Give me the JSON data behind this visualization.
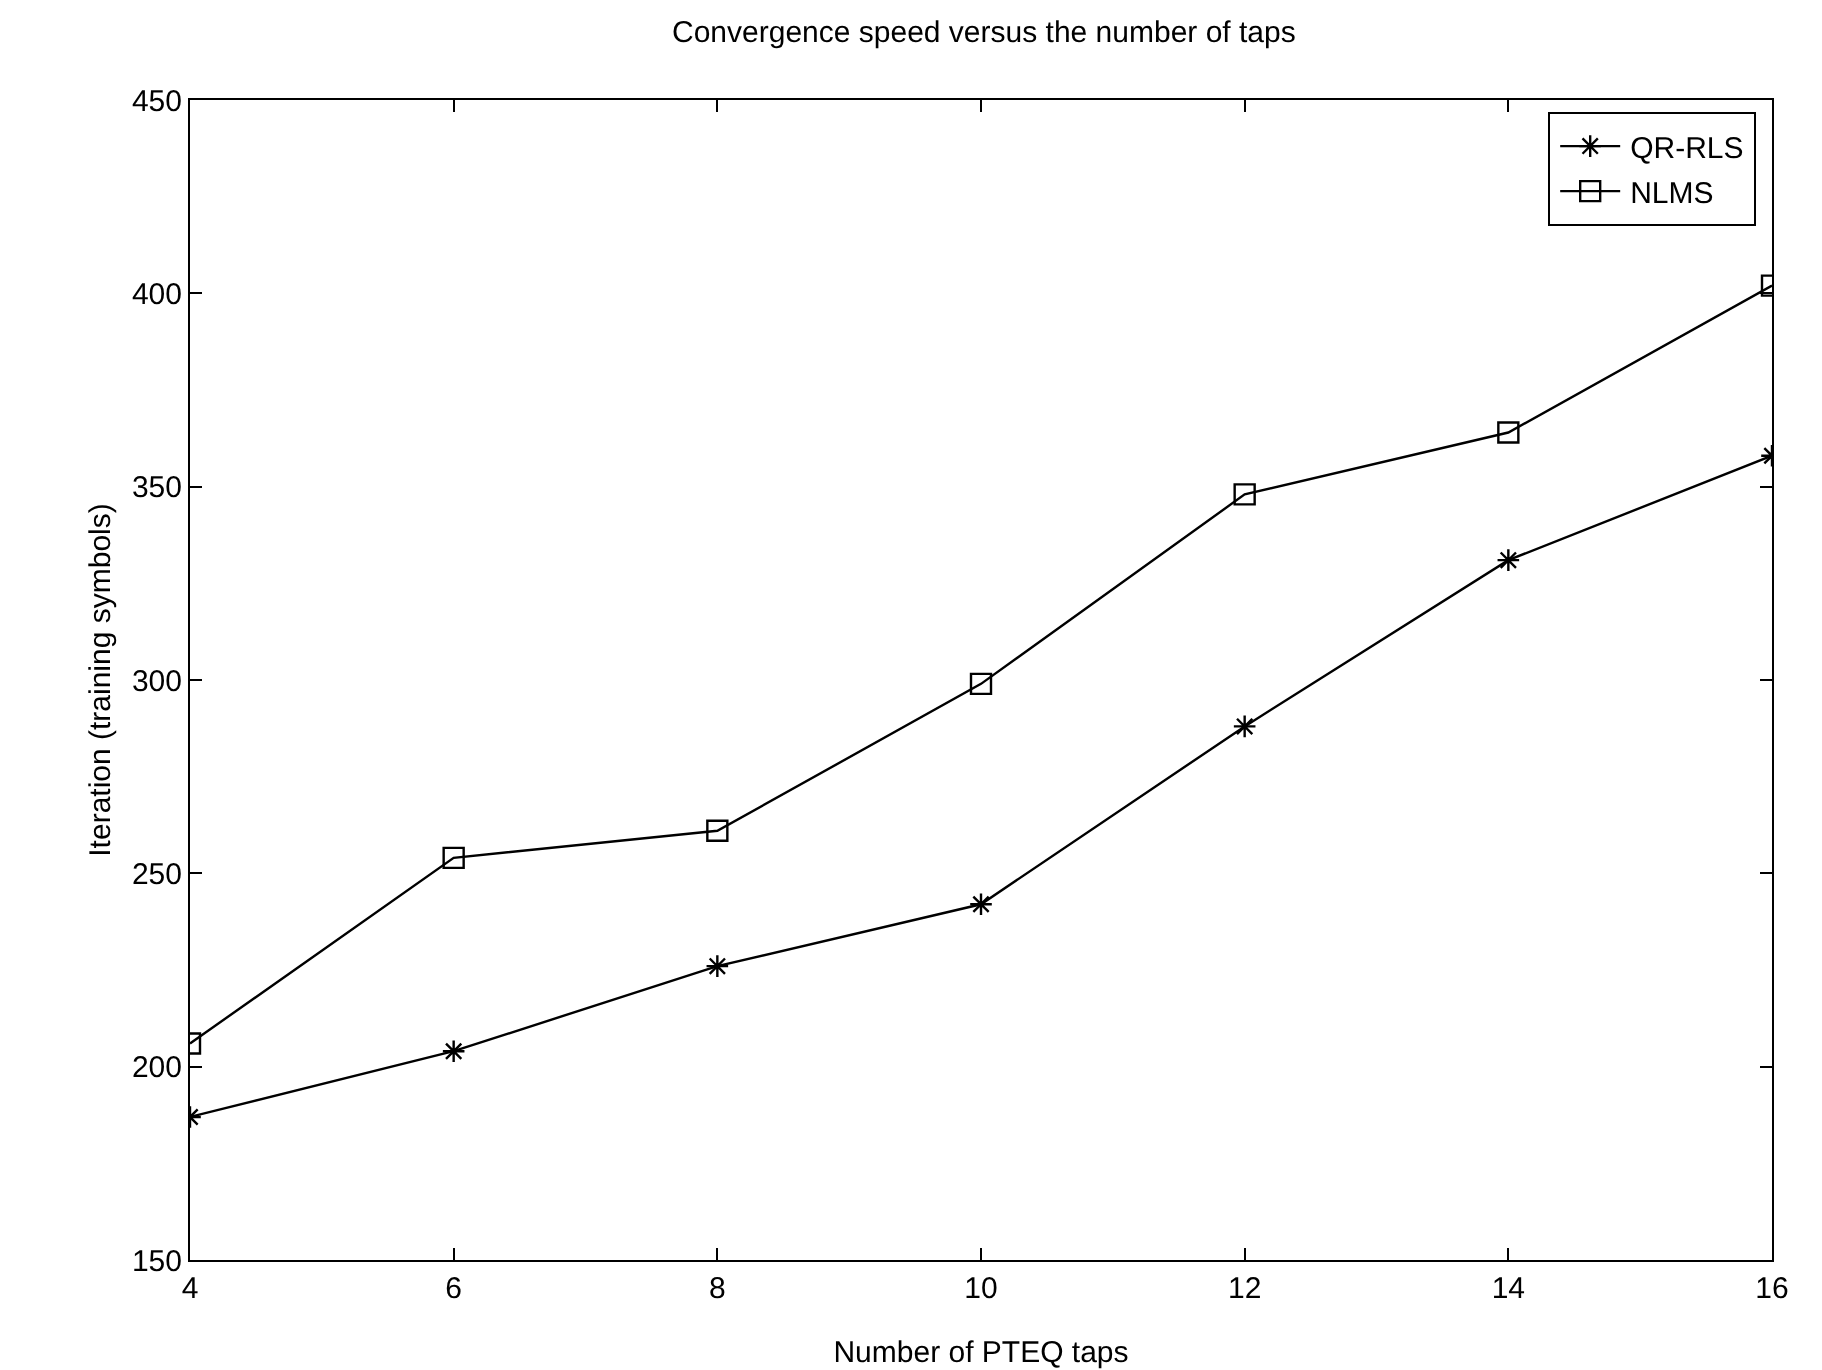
{
  "chart_data": {
    "type": "line",
    "title": "Convergence speed versus the number of taps",
    "xlabel": "Number of PTEQ taps",
    "ylabel": "Iteration (training symbols)",
    "x": [
      4,
      6,
      8,
      10,
      12,
      14,
      16
    ],
    "series": [
      {
        "name": "QR-RLS",
        "color": "#000000",
        "marker": "cross",
        "values": [
          187,
          204,
          226,
          242,
          288,
          331,
          358
        ]
      },
      {
        "name": "NLMS",
        "color": "#000000",
        "marker": "square",
        "values": [
          206,
          254,
          261,
          299,
          348,
          364,
          402
        ]
      }
    ],
    "xlim": [
      4,
      16
    ],
    "xticks": [
      4,
      6,
      8,
      10,
      12,
      14,
      16
    ],
    "ylim": [
      150,
      450
    ],
    "yticks": [
      150,
      200,
      250,
      300,
      350,
      400,
      450
    ],
    "grid": false,
    "legend": "top right",
    "line_style": "solid"
  }
}
